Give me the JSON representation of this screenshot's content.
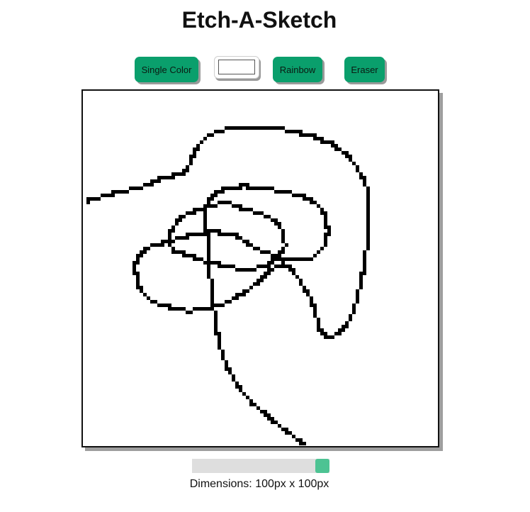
{
  "header": {
    "title": "Etch-A-Sketch"
  },
  "toolbar": {
    "single_color_label": "Single Color",
    "color_value": "#ffffff",
    "rainbow_label": "Rainbow",
    "eraser_label": "Eraser"
  },
  "colors": {
    "button_bg": "#0a9f6c",
    "slider_thumb": "#4dc393",
    "ink": "#000000"
  },
  "grid": {
    "dimensions_text": "Dimensions: 100px x 100px",
    "grid_size": 100,
    "slider_value_fraction": 1.0
  }
}
